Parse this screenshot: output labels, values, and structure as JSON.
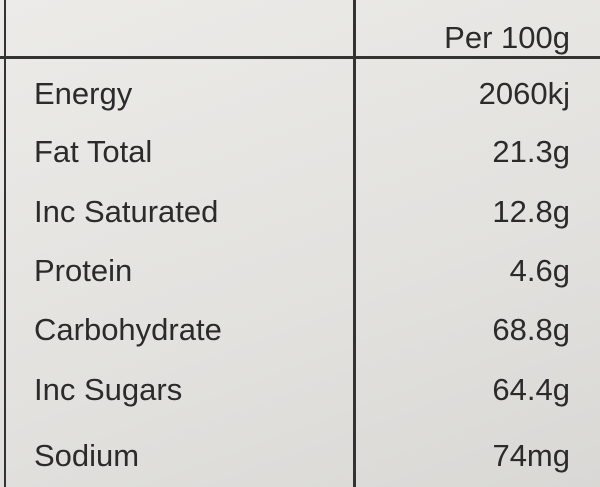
{
  "table": {
    "header": [
      "Per 100g"
    ],
    "rows": [
      [
        "Energy",
        "2060kj"
      ],
      [
        "Fat Total",
        "21.3g"
      ],
      [
        "Inc Saturated",
        "12.8g"
      ],
      [
        "Protein",
        "4.6g"
      ],
      [
        "Carbohydrate",
        "68.8g"
      ],
      [
        "Inc Sugars",
        "64.4g"
      ],
      [
        "Sodium",
        "74mg"
      ]
    ]
  }
}
